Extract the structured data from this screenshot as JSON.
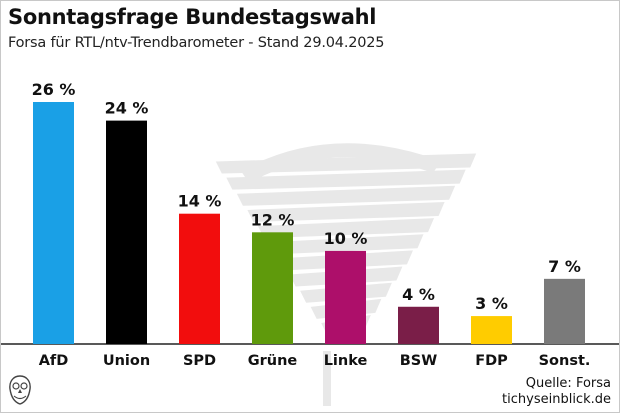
{
  "chart_data": {
    "type": "bar",
    "title": "Sonntagsfrage Bundestagswahl",
    "subtitle": "Forsa für RTL/ntv-Trendbarometer - Stand 29.04.2025",
    "categories": [
      "AfD",
      "Union",
      "SPD",
      "Grüne",
      "Linke",
      "BSW",
      "FDP",
      "Sonst."
    ],
    "values": [
      26,
      24,
      14,
      12,
      10,
      4,
      3,
      7
    ],
    "value_labels": [
      "26 %",
      "24 %",
      "14 %",
      "12 %",
      "10 %",
      "4 %",
      "3 %",
      "7 %"
    ],
    "colors": [
      "#1aa0e6",
      "#000000",
      "#f20d0d",
      "#5f9a0c",
      "#ad0f6a",
      "#7a1e48",
      "#ffcc00",
      "#7a7a7a"
    ],
    "unit": "%",
    "ylim": [
      0,
      26
    ],
    "grid": false,
    "xlabel": "",
    "ylabel": ""
  },
  "source": {
    "line1": "Quelle: Forsa",
    "line2": "tichyseinblick.de"
  }
}
